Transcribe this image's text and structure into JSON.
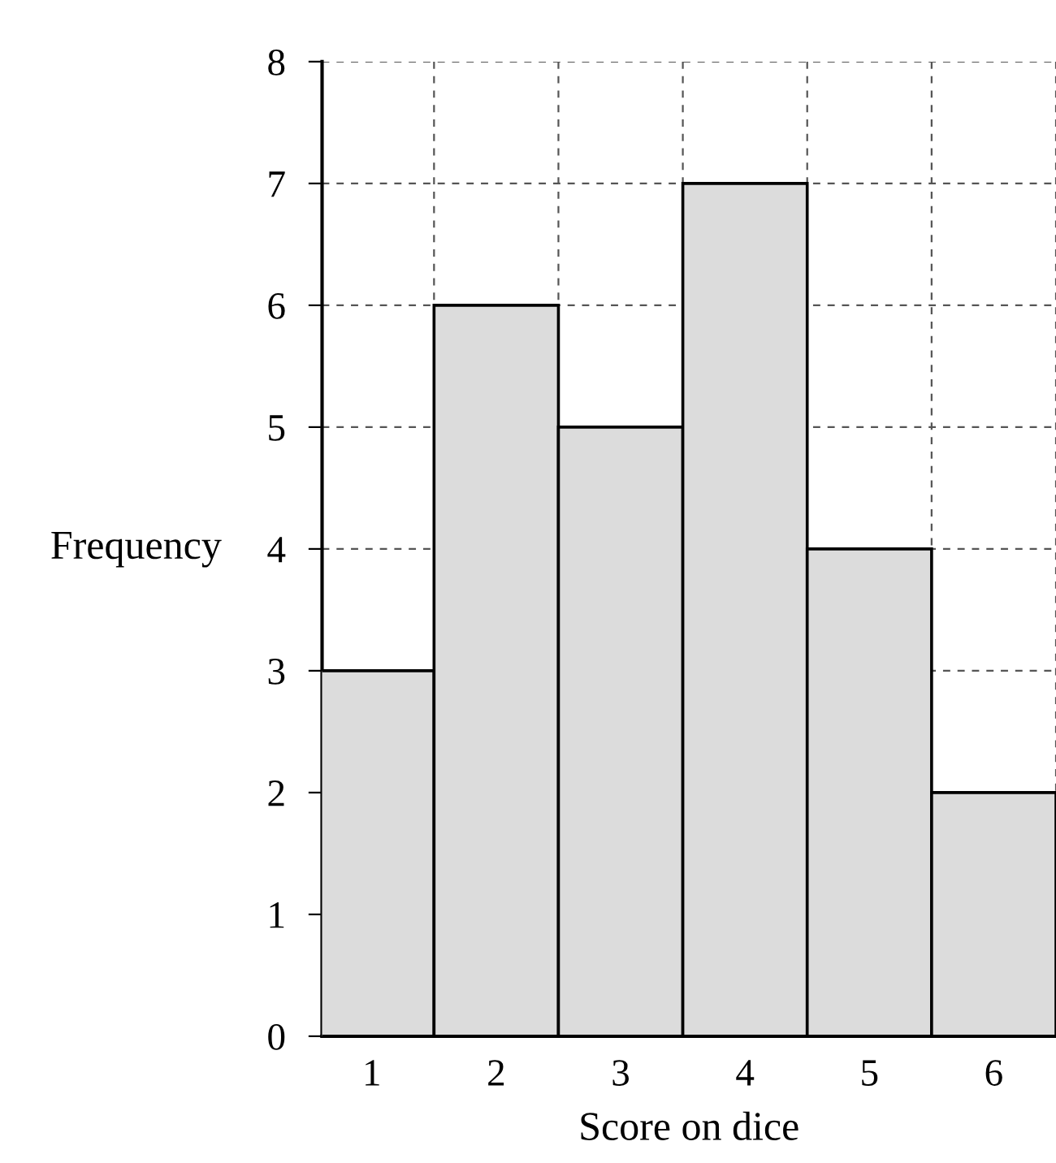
{
  "chart_data": {
    "type": "bar",
    "xlabel": "Score on dice",
    "ylabel": "Frequency",
    "categories": [
      "1",
      "2",
      "3",
      "4",
      "5",
      "6"
    ],
    "values": [
      3,
      6,
      5,
      7,
      4,
      2
    ],
    "color": "#dcdcdc",
    "ylim": [
      0,
      8
    ],
    "yticks": [
      0,
      1,
      2,
      3,
      4,
      5,
      6,
      7,
      8
    ],
    "grid": true,
    "legend": false
  }
}
